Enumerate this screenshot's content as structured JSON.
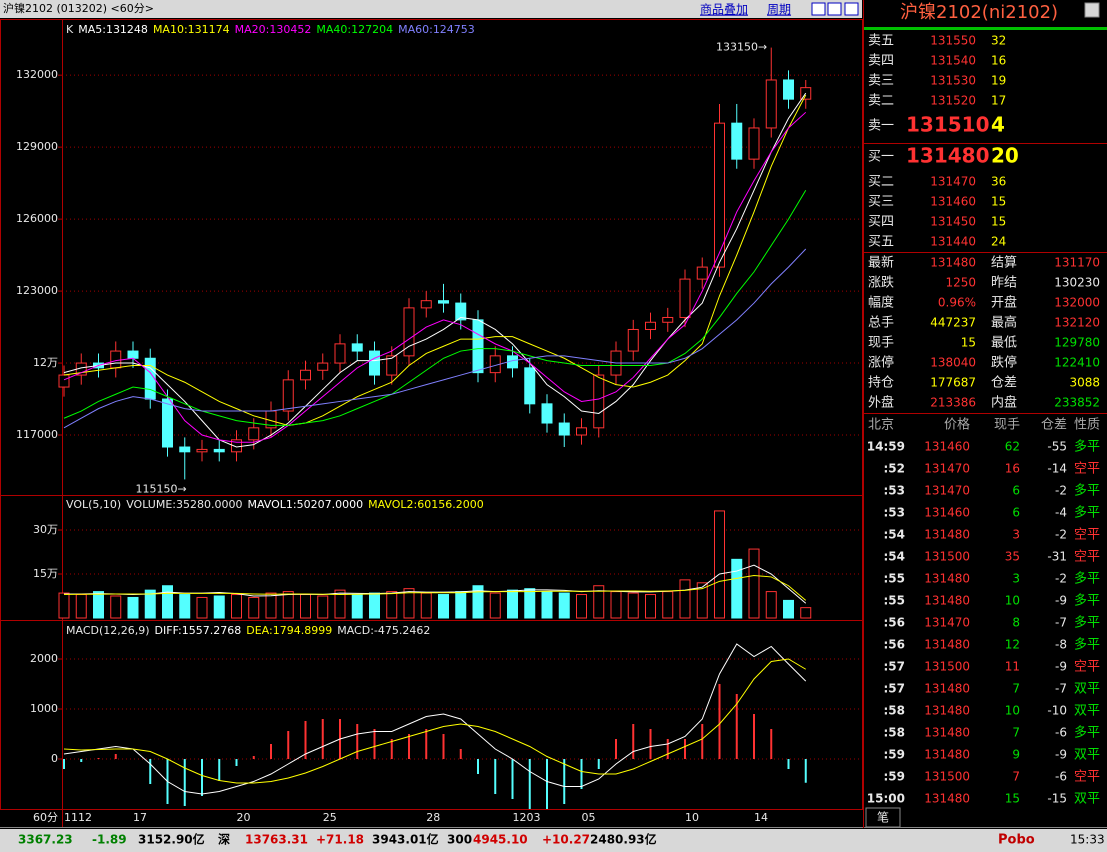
{
  "header": {
    "title": "沪镍2102 (013202) <60分>",
    "menu": [
      "商品叠加",
      "周期"
    ],
    "period_label": "60分"
  },
  "chart_data": [
    {
      "type": "candlestick",
      "legend_label": "K",
      "up_color": "#ff3232",
      "down_color": "#54ffff",
      "grid": true,
      "categories": [
        "1112",
        null,
        null,
        null,
        "17",
        null,
        null,
        null,
        null,
        null,
        "20",
        null,
        null,
        null,
        null,
        "25",
        null,
        null,
        null,
        null,
        null,
        "28",
        null,
        null,
        null,
        null,
        "1203",
        null,
        null,
        null,
        "05",
        null,
        null,
        null,
        null,
        null,
        "10",
        null,
        null,
        null,
        "14",
        null,
        null,
        null
      ],
      "open": [
        119000,
        119500,
        120000,
        119800,
        120500,
        120200,
        118500,
        116500,
        116300,
        116400,
        116300,
        116800,
        117300,
        118000,
        119300,
        119700,
        120000,
        120800,
        120500,
        119500,
        120300,
        122300,
        122600,
        122500,
        121800,
        119600,
        120300,
        119800,
        118300,
        117500,
        117000,
        117300,
        119500,
        120500,
        121400,
        121700,
        121900,
        123500,
        124000,
        130000,
        128500,
        129800,
        131800,
        131000
      ],
      "high": [
        119900,
        120400,
        120400,
        120900,
        120900,
        120600,
        118900,
        116900,
        116800,
        116800,
        117200,
        117700,
        118400,
        119700,
        120100,
        120400,
        121200,
        121200,
        120900,
        120700,
        122700,
        123000,
        123300,
        122900,
        122200,
        120700,
        120700,
        120200,
        118700,
        117900,
        117700,
        119900,
        120900,
        121800,
        122100,
        122300,
        123900,
        124400,
        130800,
        130800,
        130200,
        133150,
        132200,
        131800
      ],
      "low": [
        118600,
        119100,
        119400,
        119400,
        119800,
        118100,
        116100,
        115150,
        115900,
        115900,
        115900,
        116400,
        116900,
        117600,
        118900,
        119300,
        119600,
        120100,
        119100,
        119100,
        119900,
        121900,
        122100,
        121400,
        119200,
        119200,
        119400,
        117900,
        117100,
        116500,
        116600,
        116900,
        119100,
        120100,
        121000,
        121300,
        121500,
        123100,
        123600,
        128100,
        128100,
        129400,
        130600,
        130600
      ],
      "close": [
        119500,
        120000,
        119800,
        120500,
        120200,
        118500,
        116500,
        116300,
        116400,
        116300,
        116800,
        117300,
        118000,
        119300,
        119700,
        120000,
        120800,
        120500,
        119500,
        120300,
        122300,
        122600,
        122500,
        121800,
        119600,
        120300,
        119800,
        118300,
        117500,
        117000,
        117300,
        119500,
        120500,
        121400,
        121700,
        121900,
        123500,
        124000,
        130000,
        128500,
        129800,
        131800,
        131000,
        131480
      ],
      "series": [
        {
          "name": "MA5:131248",
          "color": "#ffffff",
          "values": [
            119600,
            119800,
            119900,
            120000,
            120000,
            119800,
            119100,
            118400,
            117600,
            116800,
            116500,
            116600,
            117000,
            117500,
            118200,
            118900,
            119600,
            120100,
            120100,
            120200,
            120700,
            121000,
            121400,
            121900,
            121800,
            121400,
            120800,
            120000,
            119100,
            118600,
            118000,
            117900,
            118400,
            119100,
            120100,
            121000,
            121800,
            122500,
            124200,
            125600,
            127200,
            128800,
            130200,
            131248
          ]
        },
        {
          "name": "MA10:131174",
          "color": "#ffff00",
          "values": [
            119500,
            119600,
            119700,
            119800,
            119900,
            119900,
            119500,
            119200,
            118800,
            118400,
            118100,
            117800,
            117600,
            117400,
            117500,
            117800,
            118200,
            118600,
            118900,
            119200,
            119900,
            120400,
            120700,
            121000,
            121000,
            121100,
            121100,
            120800,
            120500,
            120200,
            119800,
            119400,
            119100,
            119000,
            119200,
            119500,
            120100,
            120800,
            122800,
            124500,
            126300,
            128200,
            129800,
            131174
          ]
        },
        {
          "name": "MA20:130452",
          "color": "#ff00ff",
          "values": [
            119300,
            119600,
            119900,
            120100,
            120200,
            119600,
            118600,
            117600,
            117000,
            116800,
            116700,
            116700,
            116900,
            117400,
            118000,
            118600,
            119200,
            119800,
            120200,
            120500,
            121000,
            121500,
            121800,
            121600,
            121200,
            120800,
            120500,
            120000,
            119400,
            118800,
            118400,
            118500,
            118800,
            119400,
            120200,
            121000,
            121600,
            123000,
            124600,
            126300,
            127600,
            128800,
            129800,
            130452
          ]
        },
        {
          "name": "MA40:127204",
          "color": "#00ff00",
          "values": [
            117700,
            118000,
            118400,
            118700,
            119000,
            118900,
            118600,
            118300,
            118000,
            117800,
            117600,
            117500,
            117400,
            117400,
            117500,
            117600,
            117800,
            118100,
            118400,
            118700,
            119200,
            119700,
            120200,
            120500,
            120600,
            120600,
            120500,
            120300,
            120100,
            120000,
            119900,
            119900,
            119900,
            119900,
            119900,
            120000,
            120400,
            121000,
            121900,
            122900,
            123800,
            124900,
            126000,
            127204
          ]
        },
        {
          "name": "MA60:124753",
          "color": "#8080ff",
          "values": [
            117300,
            117700,
            118100,
            118400,
            118600,
            118500,
            118300,
            118100,
            118000,
            118000,
            118000,
            118000,
            118000,
            118100,
            118200,
            118300,
            118400,
            118500,
            118600,
            118700,
            118900,
            119100,
            119300,
            119500,
            119700,
            119900,
            120100,
            120200,
            120300,
            120300,
            120200,
            120100,
            120000,
            120000,
            120000,
            120000,
            120200,
            120600,
            121200,
            121800,
            122500,
            123300,
            124000,
            124753
          ]
        }
      ],
      "annotations": [
        "133150→",
        "115150→"
      ],
      "ylim": [
        114500,
        134300
      ],
      "yticks": [
        117000,
        {
          "value": 120000,
          "label": "12万"
        },
        123000,
        126000,
        129000,
        132000
      ]
    },
    {
      "type": "volume",
      "legend_label": "VOL(5,10)",
      "name": "VOLUME:35280.0000",
      "up_color": "#ff3232",
      "down_color": "#54ffff",
      "grid": true,
      "values": [
        85000,
        80000,
        90000,
        75000,
        70000,
        95000,
        110000,
        80000,
        70000,
        75000,
        80000,
        70000,
        85000,
        90000,
        80000,
        75000,
        95000,
        80000,
        85000,
        90000,
        100000,
        85000,
        80000,
        90000,
        110000,
        85000,
        95000,
        100000,
        90000,
        85000,
        80000,
        110000,
        90000,
        85000,
        80000,
        90000,
        130000,
        120000,
        365000,
        200000,
        235000,
        90000,
        60000,
        35280
      ],
      "series": [
        {
          "name": "MAVOL1:50207.0000",
          "color": "#ffffff",
          "values": [
            82000,
            82000,
            83000,
            82000,
            80000,
            82000,
            88000,
            85000,
            85000,
            87000,
            83000,
            75000,
            76000,
            80000,
            81000,
            80000,
            85000,
            84000,
            83000,
            85000,
            90000,
            88000,
            88000,
            89000,
            93000,
            90000,
            92000,
            96000,
            96000,
            94000,
            90000,
            93000,
            91000,
            89000,
            89000,
            91000,
            95000,
            105000,
            150000,
            160000,
            180000,
            150000,
            100000,
            50207
          ]
        },
        {
          "name": "MAVOL2:60156.2000",
          "color": "#ffff00",
          "values": [
            80000,
            81000,
            81000,
            82000,
            82000,
            82000,
            84000,
            84000,
            84000,
            84000,
            84000,
            82000,
            81000,
            82000,
            82000,
            81000,
            80000,
            81000,
            82000,
            83000,
            86000,
            86000,
            86000,
            86000,
            89000,
            90000,
            90000,
            90000,
            91000,
            91000,
            91000,
            91000,
            92000,
            92000,
            91000,
            92000,
            94000,
            100000,
            125000,
            135000,
            145000,
            140000,
            110000,
            60156.2
          ]
        }
      ],
      "ylim": [
        0,
        412500
      ],
      "yticks": [
        {
          "value": 150000,
          "label": "15万"
        },
        {
          "value": 300000,
          "label": "30万"
        }
      ]
    },
    {
      "type": "macd",
      "legend_label": "MACD(12,26,9)",
      "name": "MACD:-475.2462",
      "up_color": "#ff3232",
      "down_color": "#54ffff",
      "grid": true,
      "values": [
        -200,
        -60,
        20,
        100,
        0,
        -500,
        -900,
        -940,
        -740,
        -440,
        -140,
        60,
        300,
        560,
        760,
        800,
        800,
        700,
        600,
        400,
        500,
        600,
        500,
        200,
        -300,
        -700,
        -800,
        -1000,
        -1000,
        -900,
        -600,
        -200,
        400,
        700,
        600,
        400,
        400,
        700,
        1500,
        1300,
        900,
        600,
        -200,
        -475.2462
      ],
      "series": [
        {
          "name": "DIFF:1557.2768",
          "color": "#ffffff",
          "values": [
            100,
            150,
            200,
            250,
            200,
            -100,
            -450,
            -650,
            -700,
            -650,
            -550,
            -450,
            -300,
            -100,
            100,
            250,
            400,
            500,
            550,
            550,
            700,
            850,
            900,
            800,
            500,
            200,
            0,
            -250,
            -450,
            -550,
            -550,
            -400,
            -100,
            150,
            250,
            300,
            450,
            800,
            1700,
            2300,
            2050,
            2250,
            1900,
            1557.2768
          ]
        },
        {
          "name": "DEA:1794.8999",
          "color": "#ffff00",
          "values": [
            200,
            180,
            190,
            200,
            200,
            150,
            0,
            -180,
            -330,
            -430,
            -480,
            -480,
            -450,
            -380,
            -280,
            -150,
            0,
            150,
            250,
            350,
            450,
            550,
            650,
            700,
            650,
            550,
            400,
            250,
            50,
            -100,
            -250,
            -300,
            -300,
            -200,
            -50,
            100,
            250,
            400,
            700,
            1100,
            1600,
            1950,
            2000,
            1794.8999
          ]
        }
      ],
      "ylim": [
        -1020,
        2740
      ],
      "yticks": [
        0,
        1000,
        2000
      ]
    }
  ],
  "quote": {
    "title": "沪镍2102(ni2102)",
    "asks": [
      [
        "卖五",
        131550,
        32
      ],
      [
        "卖四",
        131540,
        16
      ],
      [
        "卖三",
        131530,
        19
      ],
      [
        "卖二",
        131520,
        17
      ],
      [
        "卖一",
        131510,
        4
      ]
    ],
    "bids": [
      [
        "买一",
        131480,
        20
      ],
      [
        "买二",
        131470,
        36
      ],
      [
        "买三",
        131460,
        15
      ],
      [
        "买四",
        131450,
        15
      ],
      [
        "买五",
        131440,
        24
      ]
    ],
    "stats": [
      [
        "最新",
        131480
      ],
      [
        "结算",
        131170
      ],
      [
        "涨跌",
        1250
      ],
      [
        "昨结",
        130230
      ],
      [
        "幅度",
        "0.96%"
      ],
      [
        "开盘",
        132000
      ],
      [
        "总手",
        447237
      ],
      [
        "最高",
        132120
      ],
      [
        "现手",
        15
      ],
      [
        "最低",
        129780
      ],
      [
        "涨停",
        138040
      ],
      [
        "跌停",
        122410
      ],
      [
        "持仓",
        177687
      ],
      [
        "仓差",
        3088
      ],
      [
        "外盘",
        213386
      ],
      [
        "内盘",
        233852
      ]
    ],
    "ticks": {
      "header": [
        "北京",
        "价格",
        "现手",
        "仓差",
        "性质"
      ],
      "rows": [
        [
          "14:59",
          131460,
          62,
          -55,
          "多平"
        ],
        [
          ":52",
          131470,
          16,
          -14,
          "空平"
        ],
        [
          ":53",
          131470,
          6,
          -2,
          "多平"
        ],
        [
          ":53",
          131460,
          6,
          -4,
          "多平"
        ],
        [
          ":54",
          131480,
          3,
          -2,
          "空平"
        ],
        [
          ":54",
          131500,
          35,
          -31,
          "空平"
        ],
        [
          ":55",
          131480,
          3,
          -2,
          "多平"
        ],
        [
          ":55",
          131480,
          10,
          -9,
          "多平"
        ],
        [
          ":56",
          131470,
          8,
          -7,
          "多平"
        ],
        [
          ":56",
          131480,
          12,
          -8,
          "多平"
        ],
        [
          ":57",
          131500,
          11,
          -9,
          "空平"
        ],
        [
          ":57",
          131480,
          7,
          -7,
          "双平"
        ],
        [
          ":58",
          131480,
          10,
          -10,
          "双平"
        ],
        [
          ":58",
          131480,
          7,
          -6,
          "多平"
        ],
        [
          ":59",
          131480,
          9,
          -9,
          "双平"
        ],
        [
          ":59",
          131500,
          7,
          -6,
          "空平"
        ],
        [
          "15:00",
          131480,
          15,
          -15,
          "双平"
        ]
      ]
    },
    "tab": "笔"
  },
  "status": {
    "items": [
      "3367.23",
      "-1.89",
      "3152.90亿",
      "深",
      "13763.31",
      "+71.18",
      "3943.01亿",
      "300",
      "4945.10",
      "+10.27",
      "2480.93亿"
    ],
    "brand": "Pobo",
    "time": "15:33"
  }
}
